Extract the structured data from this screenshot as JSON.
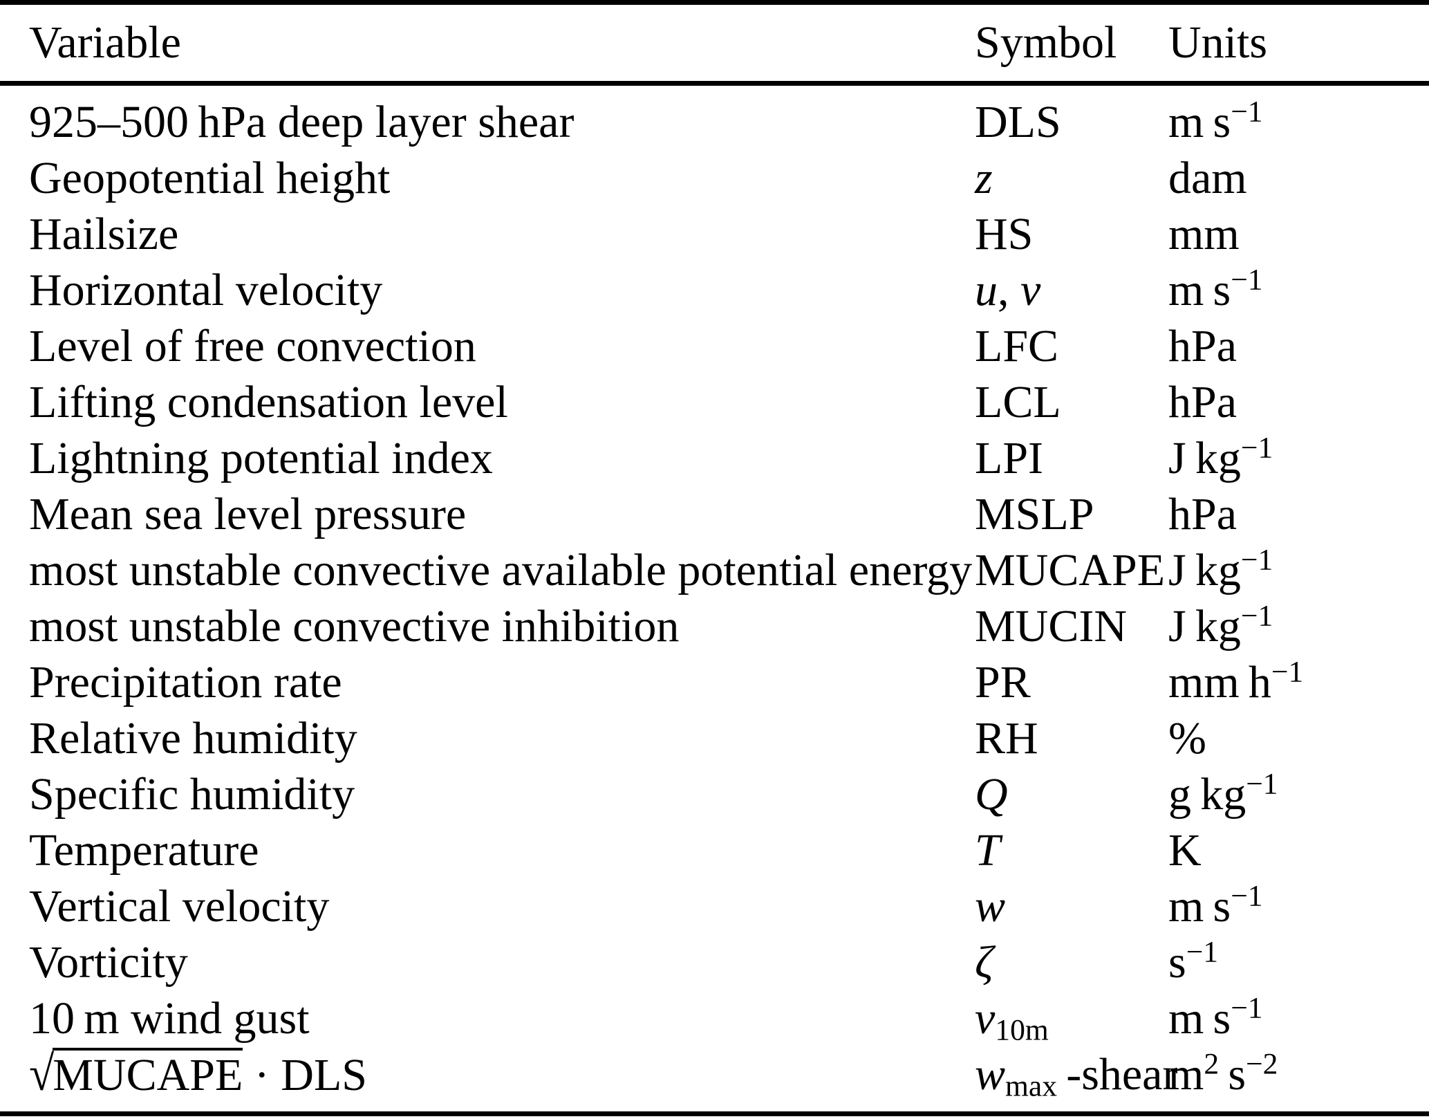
{
  "page": {
    "background_color": "#ffffff",
    "text_color": "#000000"
  },
  "table": {
    "headers": [
      {
        "key": "variable",
        "label": "Variable"
      },
      {
        "key": "symbol",
        "label": "Symbol"
      },
      {
        "key": "units",
        "label": "Units"
      }
    ],
    "rows": [
      {
        "variable": "925–500 hPa deep layer shear",
        "symbol": "DLS",
        "units": "m s^{−1}"
      },
      {
        "variable": "Geopotential height",
        "symbol": "*z*",
        "units": "dam"
      },
      {
        "variable": "Hailsize",
        "symbol": "HS",
        "units": "mm"
      },
      {
        "variable": "Horizontal velocity",
        "symbol": "*u*, *v*",
        "units": "m s^{−1}"
      },
      {
        "variable": "Level of free convection",
        "symbol": "LFC",
        "units": "hPa"
      },
      {
        "variable": "Lifting condensation level",
        "symbol": "LCL",
        "units": "hPa"
      },
      {
        "variable": "Lightning potential index",
        "symbol": "LPI",
        "units": "J kg^{−1}"
      },
      {
        "variable": "Mean sea level pressure",
        "symbol": "MSLP",
        "units": "hPa"
      },
      {
        "variable": "most unstable convective available potential energy",
        "symbol": "MUCAPE",
        "units": "J kg^{−1}"
      },
      {
        "variable": "most unstable convective inhibition",
        "symbol": "MUCIN",
        "units": "J kg^{−1}"
      },
      {
        "variable": "Precipitation rate",
        "symbol": "PR",
        "units": "mm h^{−1}"
      },
      {
        "variable": "Relative humidity",
        "symbol": "RH",
        "units": "%"
      },
      {
        "variable": "Specific humidity",
        "symbol": "*Q*",
        "units": "g kg^{−1}"
      },
      {
        "variable": "Temperature",
        "symbol": "*T*",
        "units": "K"
      },
      {
        "variable": "Vertical velocity",
        "symbol": "*w*",
        "units": "m s^{−1}"
      },
      {
        "variable": "Vorticity",
        "symbol": "*ζ*",
        "units": "s^{−1}"
      },
      {
        "variable": "10 m wind gust",
        "symbol": "*v*_{10m}",
        "units": "m s^{−1}"
      },
      {
        "variable": "√{MUCAPE} · DLS",
        "symbol": "*w*_{max} -shear",
        "units": "m^{2} s^{−2}"
      }
    ]
  }
}
